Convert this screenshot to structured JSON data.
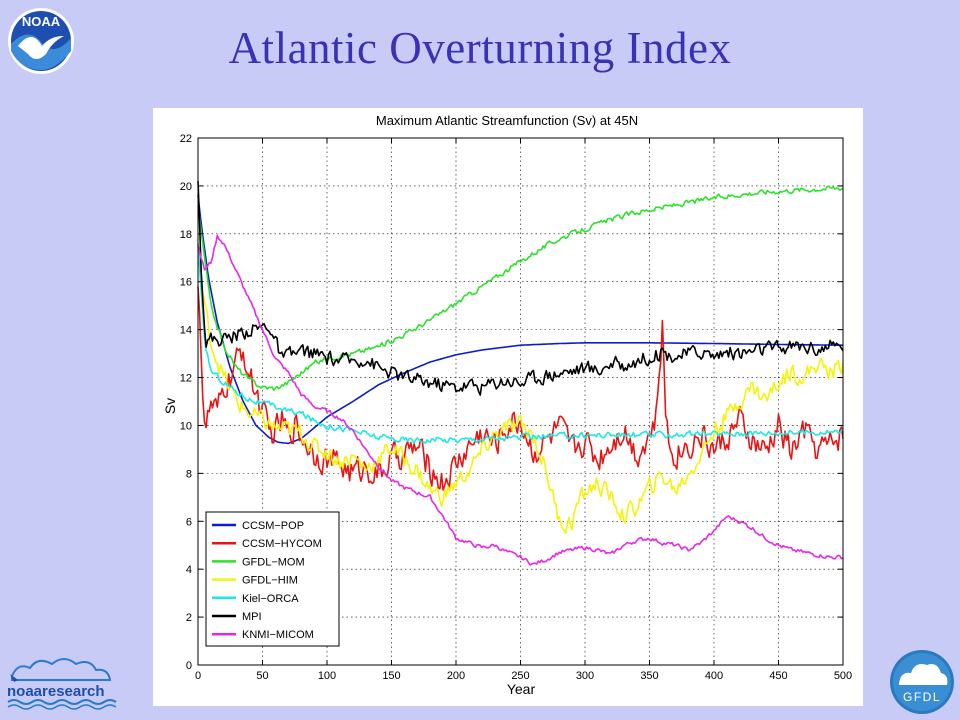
{
  "slide": {
    "title": "Atlantic Overturning Index"
  },
  "logos": {
    "noaa": "NOAA",
    "noaa_research": "noaaresearch",
    "gfdl": "GFDL"
  },
  "chart_data": {
    "type": "line",
    "title": "Maximum Atlantic Streamfunction (Sv) at 45N",
    "xlabel": "Year",
    "ylabel": "Sv",
    "xlim": [
      0,
      500
    ],
    "ylim": [
      0,
      22
    ],
    "xticks": [
      0,
      50,
      100,
      150,
      200,
      250,
      300,
      350,
      400,
      450,
      500
    ],
    "yticks": [
      0,
      2,
      4,
      6,
      8,
      10,
      12,
      14,
      16,
      18,
      20,
      22
    ],
    "grid": true,
    "legend_position": "lower-left",
    "series": [
      {
        "name": "CCSM−POP",
        "color": "#0a1fc8",
        "noise": 0,
        "points": [
          [
            0,
            19.6
          ],
          [
            3,
            18.2
          ],
          [
            8,
            16.2
          ],
          [
            15,
            14.3
          ],
          [
            25,
            12.4
          ],
          [
            35,
            11.0
          ],
          [
            45,
            10.0
          ],
          [
            55,
            9.5
          ],
          [
            62,
            9.3
          ],
          [
            70,
            9.25
          ],
          [
            80,
            9.45
          ],
          [
            90,
            9.9
          ],
          [
            100,
            10.35
          ],
          [
            120,
            11.0
          ],
          [
            140,
            11.7
          ],
          [
            160,
            12.2
          ],
          [
            180,
            12.65
          ],
          [
            200,
            12.95
          ],
          [
            220,
            13.15
          ],
          [
            250,
            13.35
          ],
          [
            280,
            13.42
          ],
          [
            300,
            13.45
          ],
          [
            350,
            13.45
          ],
          [
            400,
            13.42
          ],
          [
            450,
            13.38
          ],
          [
            500,
            13.35
          ]
        ]
      },
      {
        "name": "CCSM−HYCOM",
        "color": "#e81414",
        "noise": 0.55,
        "points": [
          [
            0,
            15.8
          ],
          [
            2,
            14.0
          ],
          [
            4,
            11.0
          ],
          [
            6,
            9.9
          ],
          [
            10,
            10.8
          ],
          [
            15,
            10.5
          ],
          [
            20,
            11.5
          ],
          [
            25,
            12.0
          ],
          [
            30,
            12.6
          ],
          [
            35,
            13.2
          ],
          [
            40,
            12.0
          ],
          [
            45,
            11.4
          ],
          [
            50,
            10.6
          ],
          [
            55,
            9.6
          ],
          [
            60,
            9.8
          ],
          [
            65,
            10.2
          ],
          [
            70,
            9.6
          ],
          [
            75,
            10.1
          ],
          [
            80,
            9.6
          ],
          [
            90,
            8.9
          ],
          [
            100,
            8.6
          ],
          [
            110,
            8.4
          ],
          [
            120,
            8.0
          ],
          [
            130,
            8.3
          ],
          [
            140,
            7.9
          ],
          [
            150,
            8.6
          ],
          [
            160,
            8.8
          ],
          [
            170,
            9.1
          ],
          [
            180,
            8.2
          ],
          [
            190,
            7.6
          ],
          [
            200,
            8.4
          ],
          [
            210,
            9.1
          ],
          [
            220,
            9.7
          ],
          [
            230,
            9.2
          ],
          [
            240,
            10.0
          ],
          [
            250,
            10.2
          ],
          [
            260,
            8.9
          ],
          [
            270,
            9.3
          ],
          [
            280,
            9.9
          ],
          [
            290,
            9.0
          ],
          [
            300,
            9.4
          ],
          [
            310,
            8.6
          ],
          [
            320,
            9.3
          ],
          [
            330,
            9.9
          ],
          [
            340,
            8.8
          ],
          [
            350,
            9.6
          ],
          [
            355,
            10.2
          ],
          [
            358,
            12.5
          ],
          [
            360,
            14.0
          ],
          [
            362,
            11.0
          ],
          [
            365,
            9.2
          ],
          [
            370,
            8.8
          ],
          [
            380,
            9.2
          ],
          [
            390,
            9.6
          ],
          [
            400,
            9.0
          ],
          [
            410,
            9.5
          ],
          [
            420,
            10.1
          ],
          [
            430,
            9.3
          ],
          [
            440,
            8.8
          ],
          [
            450,
            10.0
          ],
          [
            460,
            8.9
          ],
          [
            470,
            9.8
          ],
          [
            480,
            9.0
          ],
          [
            490,
            9.2
          ],
          [
            500,
            9.7
          ]
        ]
      },
      {
        "name": "GFDL−MOM",
        "color": "#2ee02e",
        "noise": 0.1,
        "points": [
          [
            0,
            19.2
          ],
          [
            5,
            17.0
          ],
          [
            10,
            15.0
          ],
          [
            20,
            13.3
          ],
          [
            30,
            12.4
          ],
          [
            40,
            11.9
          ],
          [
            50,
            11.6
          ],
          [
            60,
            11.55
          ],
          [
            70,
            11.8
          ],
          [
            80,
            12.2
          ],
          [
            90,
            12.6
          ],
          [
            100,
            12.8
          ],
          [
            120,
            13.0
          ],
          [
            140,
            13.3
          ],
          [
            160,
            13.8
          ],
          [
            180,
            14.4
          ],
          [
            200,
            15.1
          ],
          [
            220,
            15.8
          ],
          [
            240,
            16.5
          ],
          [
            260,
            17.2
          ],
          [
            280,
            17.8
          ],
          [
            300,
            18.2
          ],
          [
            320,
            18.6
          ],
          [
            340,
            18.9
          ],
          [
            360,
            19.1
          ],
          [
            380,
            19.3
          ],
          [
            400,
            19.5
          ],
          [
            420,
            19.65
          ],
          [
            440,
            19.75
          ],
          [
            460,
            19.82
          ],
          [
            480,
            19.88
          ],
          [
            500,
            19.93
          ]
        ]
      },
      {
        "name": "GFDL−HIM",
        "color": "#f4f40a",
        "noise": 0.35,
        "points": [
          [
            0,
            17.6
          ],
          [
            5,
            15.0
          ],
          [
            10,
            13.5
          ],
          [
            20,
            12.0
          ],
          [
            30,
            11.0
          ],
          [
            40,
            10.5
          ],
          [
            50,
            10.2
          ],
          [
            60,
            9.9
          ],
          [
            70,
            9.8
          ],
          [
            80,
            9.7
          ],
          [
            90,
            9.1
          ],
          [
            100,
            8.9
          ],
          [
            110,
            8.5
          ],
          [
            120,
            8.7
          ],
          [
            130,
            8.2
          ],
          [
            140,
            8.6
          ],
          [
            150,
            9.1
          ],
          [
            160,
            8.6
          ],
          [
            170,
            8.1
          ],
          [
            180,
            7.3
          ],
          [
            190,
            7.0
          ],
          [
            200,
            7.6
          ],
          [
            210,
            8.1
          ],
          [
            220,
            8.9
          ],
          [
            230,
            9.6
          ],
          [
            240,
            9.9
          ],
          [
            250,
            10.0
          ],
          [
            260,
            9.6
          ],
          [
            270,
            8.1
          ],
          [
            278,
            6.4
          ],
          [
            285,
            5.8
          ],
          [
            290,
            6.0
          ],
          [
            295,
            6.8
          ],
          [
            300,
            7.2
          ],
          [
            310,
            7.6
          ],
          [
            320,
            7.0
          ],
          [
            330,
            6.2
          ],
          [
            340,
            6.6
          ],
          [
            350,
            7.4
          ],
          [
            360,
            7.9
          ],
          [
            370,
            7.3
          ],
          [
            380,
            8.0
          ],
          [
            390,
            8.8
          ],
          [
            400,
            9.8
          ],
          [
            410,
            10.4
          ],
          [
            420,
            11.1
          ],
          [
            430,
            11.6
          ],
          [
            440,
            11.1
          ],
          [
            450,
            11.8
          ],
          [
            460,
            12.3
          ],
          [
            470,
            12.0
          ],
          [
            480,
            12.6
          ],
          [
            490,
            12.2
          ],
          [
            500,
            12.6
          ]
        ]
      },
      {
        "name": "Kiel−ORCA",
        "color": "#1ee6e6",
        "noise": 0.12,
        "points": [
          [
            0,
            17.6
          ],
          [
            5,
            13.5
          ],
          [
            10,
            12.3
          ],
          [
            20,
            11.8
          ],
          [
            30,
            11.4
          ],
          [
            40,
            11.1
          ],
          [
            50,
            10.9
          ],
          [
            60,
            10.8
          ],
          [
            70,
            10.6
          ],
          [
            80,
            10.5
          ],
          [
            90,
            10.2
          ],
          [
            100,
            10.0
          ],
          [
            120,
            9.8
          ],
          [
            140,
            9.5
          ],
          [
            160,
            9.4
          ],
          [
            180,
            9.4
          ],
          [
            200,
            9.4
          ],
          [
            220,
            9.45
          ],
          [
            250,
            9.5
          ],
          [
            300,
            9.6
          ],
          [
            350,
            9.6
          ],
          [
            400,
            9.65
          ],
          [
            450,
            9.7
          ],
          [
            500,
            9.75
          ]
        ]
      },
      {
        "name": "MPI",
        "color": "#000000",
        "noise": 0.28,
        "points": [
          [
            0,
            20.2
          ],
          [
            3,
            16.0
          ],
          [
            6,
            13.5
          ],
          [
            10,
            13.6
          ],
          [
            20,
            13.6
          ],
          [
            30,
            13.8
          ],
          [
            40,
            14.0
          ],
          [
            50,
            14.1
          ],
          [
            55,
            14.2
          ],
          [
            60,
            13.5
          ],
          [
            65,
            12.8
          ],
          [
            70,
            12.9
          ],
          [
            80,
            13.1
          ],
          [
            90,
            13.0
          ],
          [
            100,
            12.8
          ],
          [
            110,
            12.7
          ],
          [
            120,
            12.7
          ],
          [
            130,
            12.8
          ],
          [
            140,
            12.4
          ],
          [
            150,
            12.2
          ],
          [
            160,
            12.0
          ],
          [
            170,
            11.9
          ],
          [
            180,
            11.8
          ],
          [
            190,
            11.7
          ],
          [
            200,
            11.6
          ],
          [
            210,
            11.7
          ],
          [
            220,
            11.6
          ],
          [
            230,
            11.8
          ],
          [
            240,
            11.9
          ],
          [
            250,
            11.8
          ],
          [
            260,
            12.0
          ],
          [
            270,
            12.1
          ],
          [
            280,
            12.2
          ],
          [
            290,
            12.3
          ],
          [
            300,
            12.4
          ],
          [
            310,
            12.3
          ],
          [
            320,
            12.6
          ],
          [
            330,
            12.5
          ],
          [
            340,
            12.7
          ],
          [
            350,
            12.9
          ],
          [
            360,
            13.0
          ],
          [
            370,
            12.9
          ],
          [
            380,
            13.0
          ],
          [
            390,
            13.1
          ],
          [
            400,
            12.9
          ],
          [
            410,
            13.1
          ],
          [
            420,
            13.0
          ],
          [
            430,
            13.1
          ],
          [
            440,
            13.2
          ],
          [
            450,
            13.2
          ],
          [
            460,
            13.3
          ],
          [
            470,
            13.3
          ],
          [
            480,
            13.2
          ],
          [
            490,
            13.3
          ],
          [
            500,
            13.3
          ]
        ]
      },
      {
        "name": "KNMI−MICOM",
        "color": "#e628e6",
        "noise": 0.08,
        "points": [
          [
            0,
            17.5
          ],
          [
            5,
            16.5
          ],
          [
            10,
            16.8
          ],
          [
            15,
            17.9
          ],
          [
            20,
            17.6
          ],
          [
            25,
            17.0
          ],
          [
            30,
            16.4
          ],
          [
            35,
            15.8
          ],
          [
            40,
            15.2
          ],
          [
            45,
            14.6
          ],
          [
            50,
            14.0
          ],
          [
            55,
            13.4
          ],
          [
            60,
            12.8
          ],
          [
            70,
            12.2
          ],
          [
            80,
            11.3
          ],
          [
            90,
            10.8
          ],
          [
            100,
            10.6
          ],
          [
            110,
            10.3
          ],
          [
            120,
            9.8
          ],
          [
            130,
            9.0
          ],
          [
            140,
            8.3
          ],
          [
            150,
            7.7
          ],
          [
            160,
            7.4
          ],
          [
            170,
            7.2
          ],
          [
            180,
            7.0
          ],
          [
            190,
            6.2
          ],
          [
            200,
            5.3
          ],
          [
            210,
            5.1
          ],
          [
            220,
            4.9
          ],
          [
            230,
            5.0
          ],
          [
            240,
            4.7
          ],
          [
            250,
            4.5
          ],
          [
            260,
            4.2
          ],
          [
            270,
            4.4
          ],
          [
            280,
            4.7
          ],
          [
            290,
            4.8
          ],
          [
            300,
            4.9
          ],
          [
            310,
            4.8
          ],
          [
            320,
            4.6
          ],
          [
            330,
            5.0
          ],
          [
            340,
            5.2
          ],
          [
            350,
            5.3
          ],
          [
            360,
            5.1
          ],
          [
            370,
            5.0
          ],
          [
            380,
            4.8
          ],
          [
            390,
            5.1
          ],
          [
            400,
            5.6
          ],
          [
            410,
            6.2
          ],
          [
            420,
            6.0
          ],
          [
            430,
            5.7
          ],
          [
            440,
            5.3
          ],
          [
            450,
            5.0
          ],
          [
            460,
            4.8
          ],
          [
            470,
            4.7
          ],
          [
            480,
            4.6
          ],
          [
            490,
            4.5
          ],
          [
            500,
            4.5
          ]
        ]
      }
    ]
  }
}
